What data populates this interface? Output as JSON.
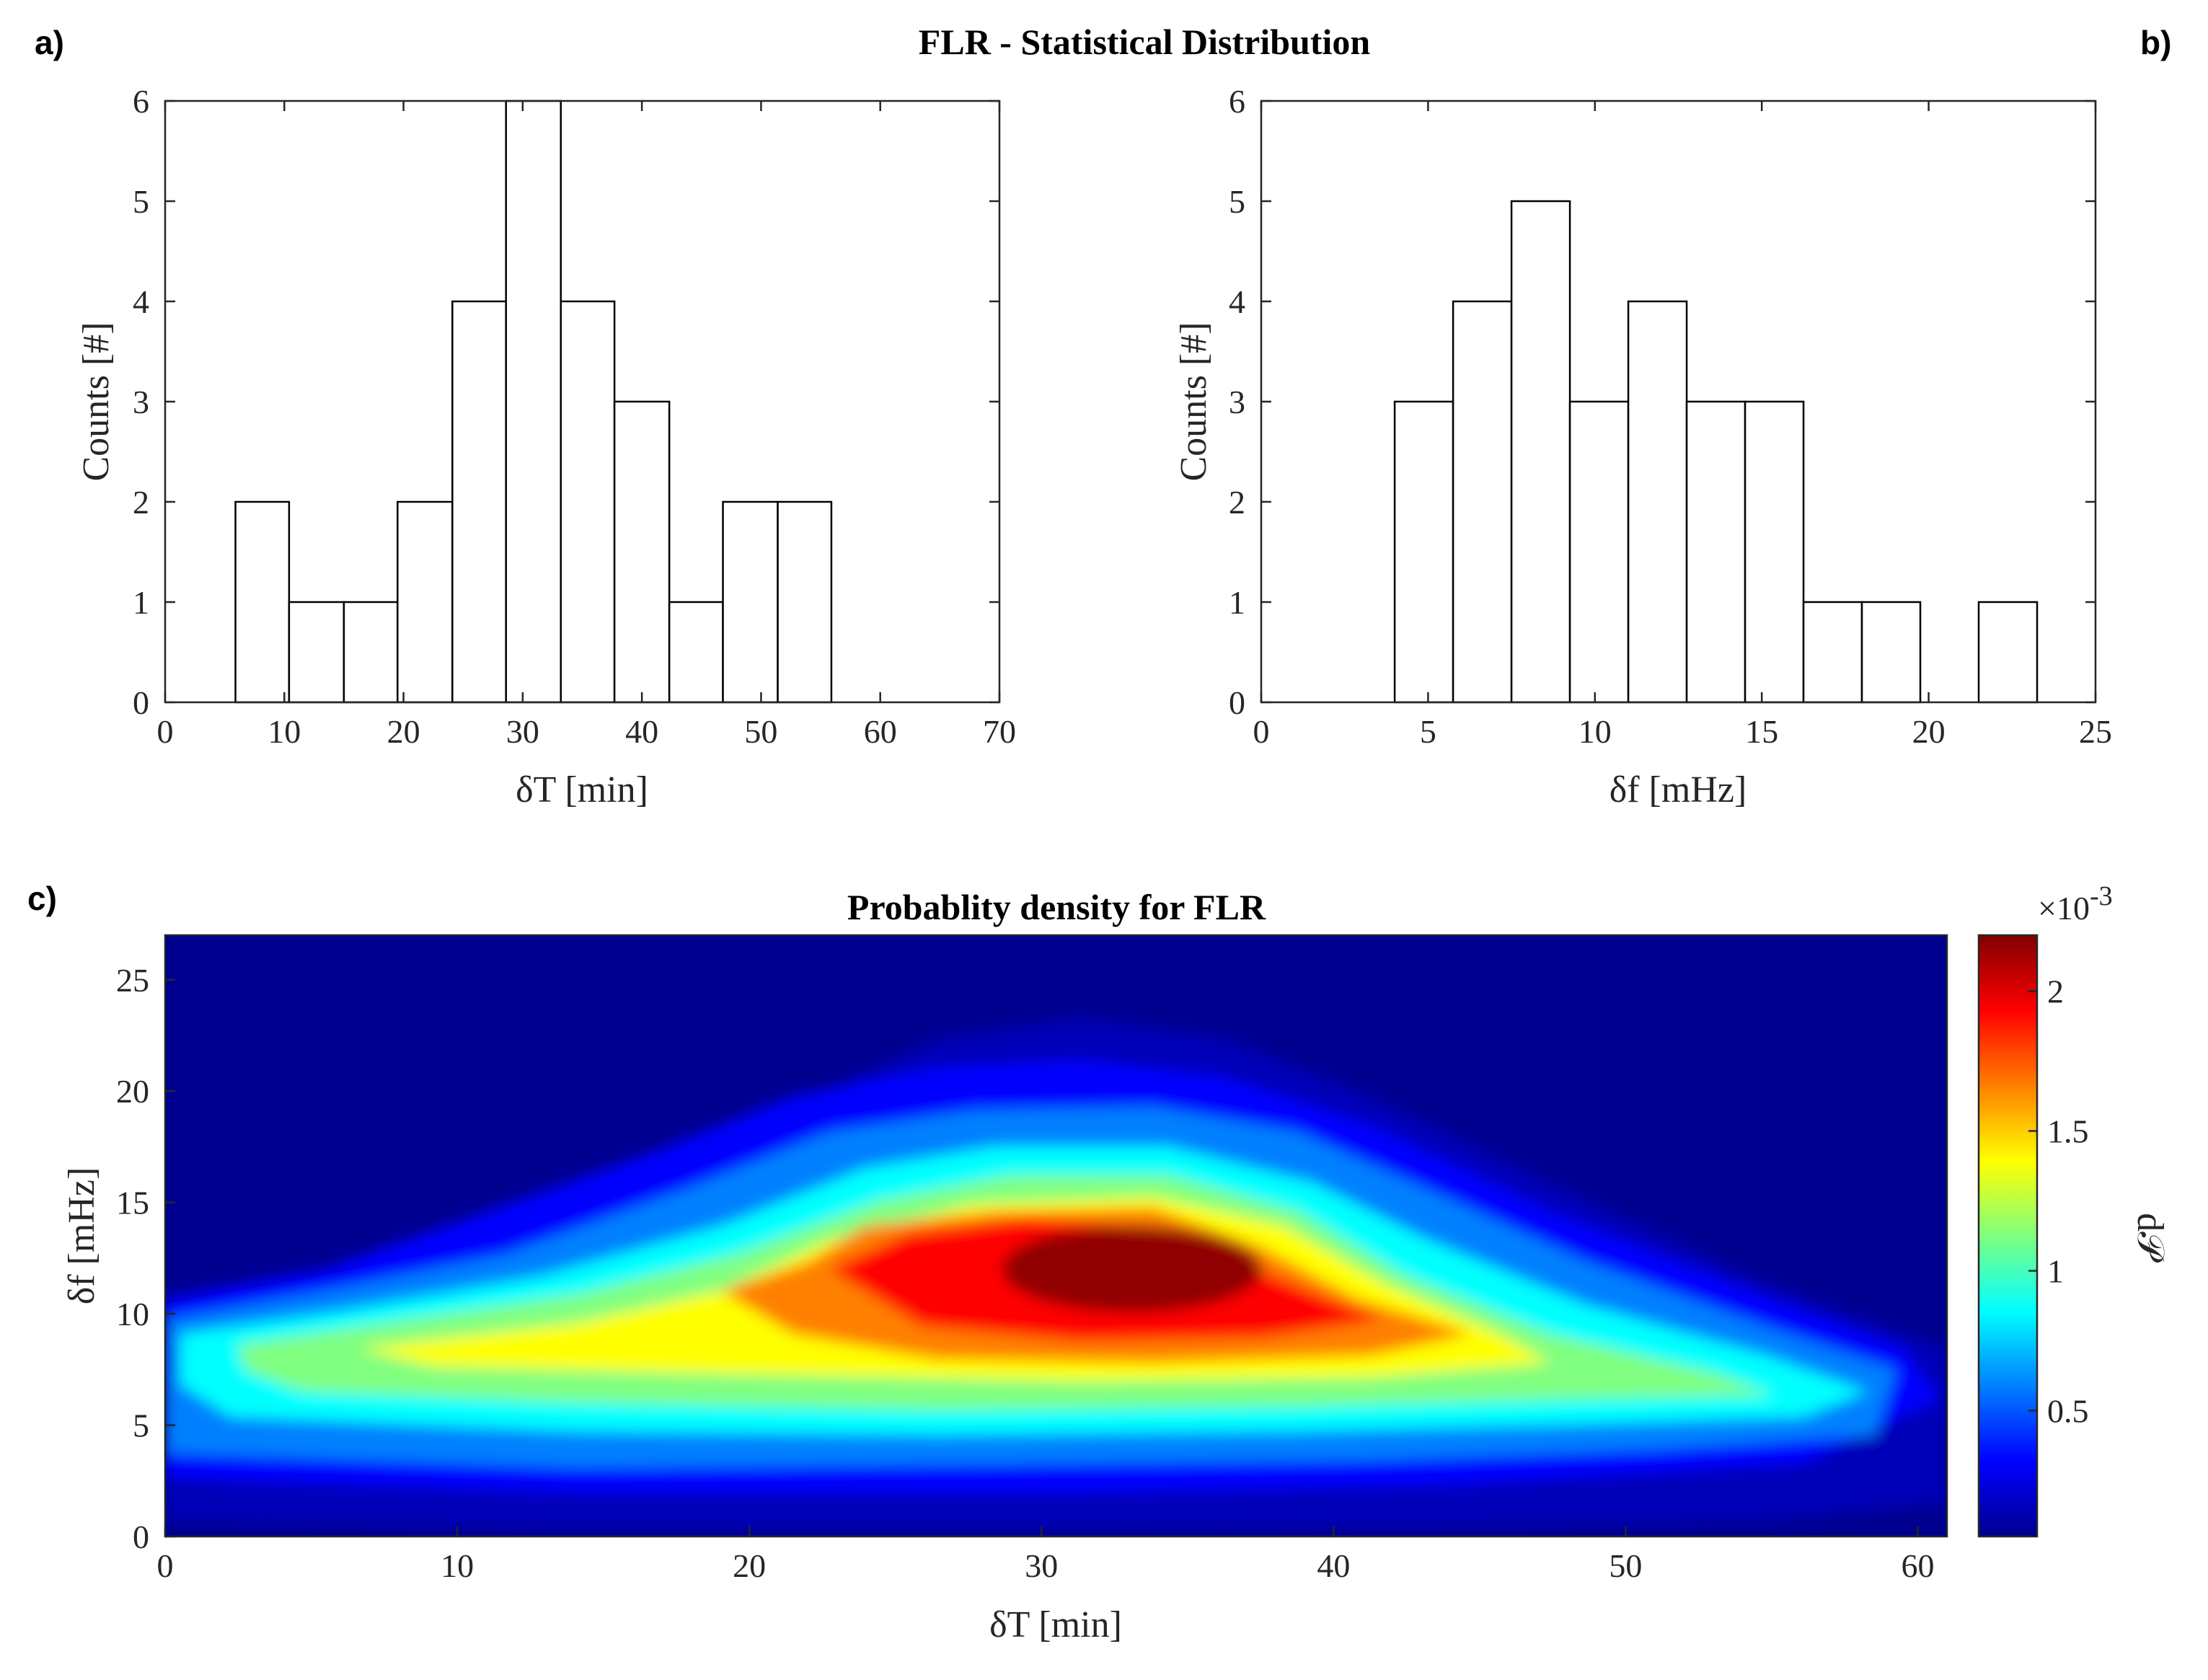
{
  "figure": {
    "title": "FLR - Statistical Distribution",
    "panel_a": "a)",
    "panel_b": "b)",
    "panel_c": "c)"
  },
  "chart_data": [
    {
      "id": "a",
      "type": "bar",
      "subtype": "histogram",
      "xlabel": "δT [min]",
      "ylabel": "Counts [#]",
      "xlim": [
        0,
        70
      ],
      "ylim": [
        0,
        6
      ],
      "xticks": [
        0,
        10,
        20,
        30,
        40,
        50,
        60,
        70
      ],
      "yticks": [
        0,
        1,
        2,
        3,
        4,
        5,
        6
      ],
      "bin_edges": [
        5.9,
        10.4,
        15.0,
        19.5,
        24.1,
        28.6,
        33.2,
        37.7,
        42.3,
        46.8,
        51.4,
        55.9
      ],
      "values": [
        2,
        1,
        1,
        2,
        4,
        6,
        4,
        3,
        1,
        2,
        2
      ]
    },
    {
      "id": "b",
      "type": "bar",
      "subtype": "histogram",
      "xlabel": "δf [mHz]",
      "ylabel": "Counts [#]",
      "xlim": [
        0,
        25
      ],
      "ylim": [
        0,
        6
      ],
      "xticks": [
        0,
        5,
        10,
        15,
        20,
        25
      ],
      "yticks": [
        0,
        1,
        2,
        3,
        4,
        5,
        6
      ],
      "bin_edges": [
        4.0,
        5.75,
        7.5,
        9.25,
        11.0,
        12.75,
        14.5,
        16.25,
        18.0,
        19.75,
        21.5,
        23.25
      ],
      "values": [
        3,
        4,
        5,
        3,
        4,
        3,
        3,
        1,
        1,
        0,
        1
      ]
    },
    {
      "id": "c",
      "type": "heatmap",
      "title": "Probablity density for FLR",
      "xlabel": "δT [min]",
      "ylabel": "δf [mHz]",
      "xlim": [
        0,
        61
      ],
      "ylim": [
        0,
        27
      ],
      "xticks": [
        0,
        10,
        20,
        30,
        40,
        50,
        60
      ],
      "yticks": [
        0,
        5,
        10,
        15,
        20,
        25
      ],
      "colorbar": {
        "label": "d𝒫",
        "exponent_label": "×10",
        "exponent": "-3",
        "range": [
          0.05,
          2.2
        ],
        "ticks": [
          0.5,
          1,
          1.5,
          2
        ]
      },
      "colormap": "jet",
      "peak": {
        "x": 32,
        "y": 12.5,
        "value": 2.2
      }
    }
  ]
}
